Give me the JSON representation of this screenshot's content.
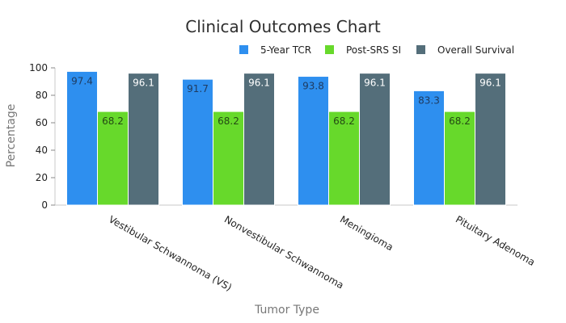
{
  "chart_data": {
    "type": "bar",
    "title": "Clinical Outcomes Chart",
    "xlabel": "Tumor Type",
    "ylabel": "Percentage",
    "ylim": [
      0,
      100
    ],
    "yticks": [
      0,
      20,
      40,
      60,
      80,
      100
    ],
    "categories": [
      "Vestibular Schwannoma (VS)",
      "Nonvestibular Schwannoma",
      "Meningioma",
      "Pituitary Adenoma"
    ],
    "series": [
      {
        "name": "5-Year TCR",
        "color": "#2e8fef",
        "label_color": "#1f3b60",
        "values": [
          97.4,
          91.7,
          93.8,
          83.3
        ]
      },
      {
        "name": "Post-SRS SI",
        "color": "#67d92b",
        "label_color": "#244a14",
        "values": [
          68.2,
          68.2,
          68.2,
          68.2
        ]
      },
      {
        "name": "Overall Survival",
        "color": "#546e7a",
        "label_color": "#ffffff",
        "values": [
          96.1,
          96.1,
          96.1,
          96.1
        ]
      }
    ],
    "legend_position": "top-right",
    "grid": false
  }
}
